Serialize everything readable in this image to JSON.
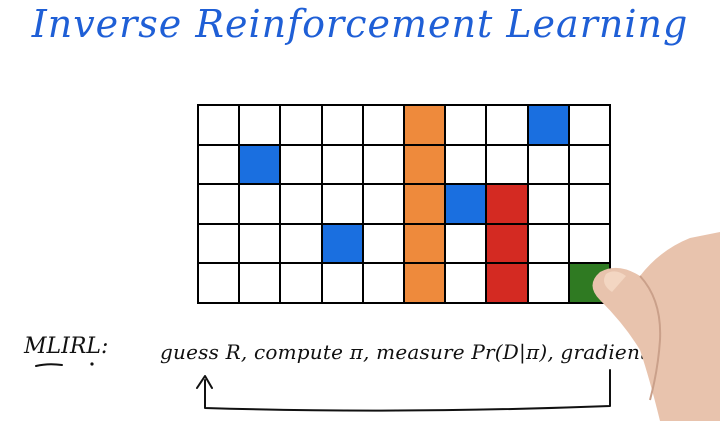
{
  "title": "Inverse Reinforcement Learning",
  "grid": {
    "rows": 5,
    "cols": 10,
    "colors": {
      "blue": "#1a6fe0",
      "orange": "#ee8a3c",
      "red": "#d42a22",
      "green": "#2f7a22"
    },
    "filled": [
      {
        "row": 0,
        "col": 5,
        "color": "orange"
      },
      {
        "row": 1,
        "col": 5,
        "color": "orange"
      },
      {
        "row": 2,
        "col": 5,
        "color": "orange"
      },
      {
        "row": 3,
        "col": 5,
        "color": "orange"
      },
      {
        "row": 4,
        "col": 5,
        "color": "orange"
      },
      {
        "row": 0,
        "col": 8,
        "color": "blue"
      },
      {
        "row": 1,
        "col": 1,
        "color": "blue"
      },
      {
        "row": 2,
        "col": 6,
        "color": "blue"
      },
      {
        "row": 3,
        "col": 3,
        "color": "blue"
      },
      {
        "row": 2,
        "col": 7,
        "color": "red"
      },
      {
        "row": 3,
        "col": 7,
        "color": "red"
      },
      {
        "row": 4,
        "col": 7,
        "color": "red"
      },
      {
        "row": 4,
        "col": 9,
        "color": "green"
      }
    ]
  },
  "algorithm": {
    "label": "MLIRL:",
    "steps": "guess R, compute π, measure Pr(D|π), gradient on R"
  }
}
